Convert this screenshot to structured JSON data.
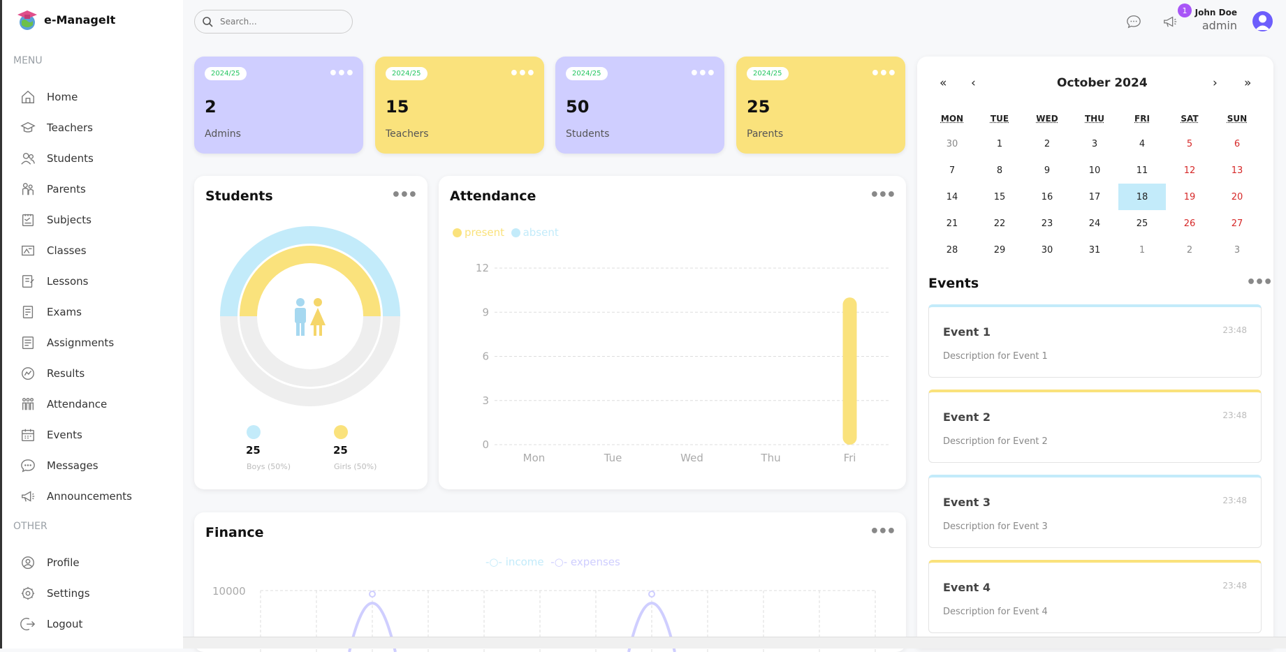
{
  "app": {
    "name": "e-ManageIt"
  },
  "sidebar": {
    "menu_label": "MENU",
    "other_label": "OTHER",
    "menu_items": [
      {
        "label": "Home",
        "icon": "home-icon"
      },
      {
        "label": "Teachers",
        "icon": "teacher-icon"
      },
      {
        "label": "Students",
        "icon": "students-icon"
      },
      {
        "label": "Parents",
        "icon": "parents-icon"
      },
      {
        "label": "Subjects",
        "icon": "subjects-icon"
      },
      {
        "label": "Classes",
        "icon": "classes-icon"
      },
      {
        "label": "Lessons",
        "icon": "lessons-icon"
      },
      {
        "label": "Exams",
        "icon": "exams-icon"
      },
      {
        "label": "Assignments",
        "icon": "assignments-icon"
      },
      {
        "label": "Results",
        "icon": "results-icon"
      },
      {
        "label": "Attendance",
        "icon": "attendance-icon"
      },
      {
        "label": "Events",
        "icon": "calendar-icon"
      },
      {
        "label": "Messages",
        "icon": "message-icon"
      },
      {
        "label": "Announcements",
        "icon": "megaphone-icon"
      }
    ],
    "other_items": [
      {
        "label": "Profile",
        "icon": "profile-icon"
      },
      {
        "label": "Settings",
        "icon": "settings-icon"
      },
      {
        "label": "Logout",
        "icon": "logout-icon"
      }
    ]
  },
  "header": {
    "search_placeholder": "Search...",
    "notification_count": "1",
    "user_name": "John Doe",
    "user_role": "admin"
  },
  "stats": [
    {
      "year": "2024/25",
      "value": "2",
      "label": "Admins",
      "color": "#cfceff"
    },
    {
      "year": "2024/25",
      "value": "15",
      "label": "Teachers",
      "color": "#fae27c"
    },
    {
      "year": "2024/25",
      "value": "50",
      "label": "Students",
      "color": "#cfceff"
    },
    {
      "year": "2024/25",
      "value": "25",
      "label": "Parents",
      "color": "#fae27c"
    }
  ],
  "students_panel": {
    "title": "Students",
    "boys": {
      "count": "25",
      "label": "Boys (50%)",
      "color": "#c3ebfa"
    },
    "girls": {
      "count": "25",
      "label": "Girls (50%)",
      "color": "#fae27c"
    }
  },
  "attendance_panel": {
    "title": "Attendance",
    "legend": [
      {
        "name": "present",
        "color": "#fae27c"
      },
      {
        "name": "absent",
        "color": "#c3ebfa"
      }
    ]
  },
  "finance_panel": {
    "title": "Finance",
    "legend": [
      {
        "name": "income",
        "color": "#c3ebfa"
      },
      {
        "name": "expenses",
        "color": "#cfceff"
      }
    ],
    "y_tick_top": "10000"
  },
  "chart_data": [
    {
      "type": "bar",
      "categories": [
        "Mon",
        "Tue",
        "Wed",
        "Thu",
        "Fri"
      ],
      "series": [
        {
          "name": "present",
          "values": [
            0,
            0,
            0,
            0,
            10
          ]
        },
        {
          "name": "absent",
          "values": [
            0,
            0,
            0,
            0,
            0
          ]
        }
      ],
      "yticks": [
        0,
        3,
        6,
        9,
        12
      ],
      "ylim": [
        0,
        12
      ],
      "legend": "top-left",
      "grid": true
    },
    {
      "type": "pie",
      "categories": [
        "Boys",
        "Girls"
      ],
      "values": [
        25,
        25
      ]
    }
  ],
  "calendar": {
    "title": "October 2024",
    "nav": {
      "prev_year": "«",
      "prev_month": "‹",
      "next_month": "›",
      "next_year": "»"
    },
    "dow": [
      "MON",
      "TUE",
      "WED",
      "THU",
      "FRI",
      "SAT",
      "SUN"
    ],
    "weeks": [
      [
        "30",
        "1",
        "2",
        "3",
        "4",
        "5",
        "6"
      ],
      [
        "7",
        "8",
        "9",
        "10",
        "11",
        "12",
        "13"
      ],
      [
        "14",
        "15",
        "16",
        "17",
        "18",
        "19",
        "20"
      ],
      [
        "21",
        "22",
        "23",
        "24",
        "25",
        "26",
        "27"
      ],
      [
        "28",
        "29",
        "30",
        "31",
        "1",
        "2",
        "3"
      ]
    ],
    "today": "18"
  },
  "events_panel": {
    "title": "Events",
    "events": [
      {
        "title": "Event 1",
        "time": "23:48",
        "description": "Description for Event 1"
      },
      {
        "title": "Event 2",
        "time": "23:48",
        "description": "Description for Event 2"
      },
      {
        "title": "Event 3",
        "time": "23:48",
        "description": "Description for Event 3"
      },
      {
        "title": "Event 4",
        "time": "23:48",
        "description": "Description for Event 4"
      }
    ]
  }
}
